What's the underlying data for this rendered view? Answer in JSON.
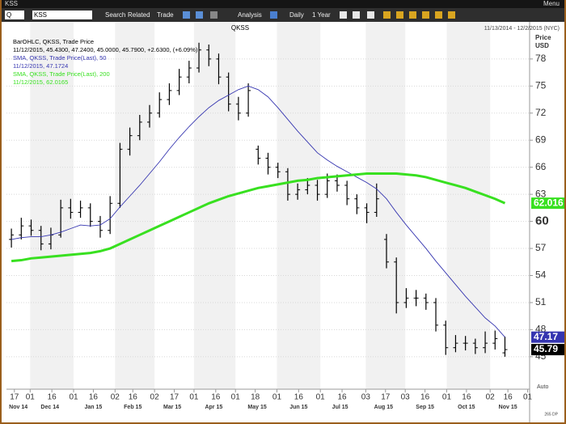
{
  "window": {
    "title": "KSS",
    "menu": "Menu"
  },
  "toolbar": {
    "symbol_prefix": "Q",
    "symbol": "KSS",
    "items": [
      "Search",
      "Related",
      "Trade",
      "Analysis",
      "Daily",
      "1 Year"
    ]
  },
  "chart_data": {
    "type": "ohlc",
    "title": "QKSS",
    "subtitle": "11/13/2014 - 12/2/2015 (NYC)",
    "y_label": "Price",
    "y_unit": "USD",
    "xlim": [
      0,
      265
    ],
    "ylim": [
      41.4,
      80.5
    ],
    "yticks": [
      45,
      48,
      51,
      54,
      57,
      60,
      63,
      66,
      69,
      72,
      75,
      78
    ],
    "emphasized_ytick": 60,
    "grid": true,
    "xticks": [
      {
        "value": 4,
        "label": "17"
      },
      {
        "value": 12,
        "label": "01"
      },
      {
        "value": 23,
        "label": "16"
      },
      {
        "value": 34,
        "label": "01"
      },
      {
        "value": 44,
        "label": "16"
      },
      {
        "value": 55,
        "label": "02"
      },
      {
        "value": 64,
        "label": "16"
      },
      {
        "value": 75,
        "label": "02"
      },
      {
        "value": 85,
        "label": "17"
      },
      {
        "value": 95,
        "label": "01"
      },
      {
        "value": 106,
        "label": "16"
      },
      {
        "value": 116,
        "label": "01"
      },
      {
        "value": 126,
        "label": "18"
      },
      {
        "value": 137,
        "label": "01"
      },
      {
        "value": 148,
        "label": "16"
      },
      {
        "value": 159,
        "label": "01"
      },
      {
        "value": 170,
        "label": "16"
      },
      {
        "value": 182,
        "label": "03"
      },
      {
        "value": 192,
        "label": "17"
      },
      {
        "value": 202,
        "label": "03"
      },
      {
        "value": 212,
        "label": "16"
      },
      {
        "value": 223,
        "label": "01"
      },
      {
        "value": 233,
        "label": "16"
      },
      {
        "value": 245,
        "label": "02"
      },
      {
        "value": 254,
        "label": "16"
      },
      {
        "value": 264,
        "label": "01"
      }
    ],
    "month_ticks": [
      {
        "value": 6,
        "label": "Nov 14"
      },
      {
        "value": 22,
        "label": "Dec 14"
      },
      {
        "value": 44,
        "label": "Jan 15"
      },
      {
        "value": 64,
        "label": "Feb 15"
      },
      {
        "value": 84,
        "label": "Mar 15"
      },
      {
        "value": 105,
        "label": "Apr 15"
      },
      {
        "value": 127,
        "label": "May 15"
      },
      {
        "value": 148,
        "label": "Jun 15"
      },
      {
        "value": 169,
        "label": "Jul 15"
      },
      {
        "value": 191,
        "label": "Aug 15"
      },
      {
        "value": 212,
        "label": "Sep 15"
      },
      {
        "value": 233,
        "label": "Oct 15"
      },
      {
        "value": 254,
        "label": "Nov 15"
      }
    ],
    "x": [
      2.5,
      7.5,
      12.5,
      17.5,
      22.5,
      27.5,
      32.5,
      37.5,
      42.5,
      47.5,
      52.5,
      57.5,
      62.5,
      67.5,
      72.5,
      77.5,
      82.5,
      87.5,
      92.5,
      97.5,
      102.5,
      107.5,
      112.5,
      117.5,
      122.5,
      127.5,
      132.5,
      137.5,
      142.5,
      147.5,
      152.5,
      157.5,
      162.5,
      167.5,
      172.5,
      177.5,
      182.5,
      187.5,
      192.5,
      197.5,
      202.5,
      207.5,
      212.5,
      217.5,
      222.5,
      227.5,
      232.5,
      237.5,
      242.5,
      247.5,
      252.5
    ],
    "series": [
      {
        "name": "BarOHLC, QKSS, Trade Price",
        "info": "11/12/2015, 45.4300, 47.2400, 45.0000, 45.7900, +2.6300, (+6.09%)",
        "color": "#000000",
        "last_label": "45.79",
        "open": [
          58,
          58.5,
          59.5,
          59,
          57.5,
          58.5,
          61.5,
          61,
          61.5,
          60,
          59,
          62,
          68,
          69.5,
          71,
          72,
          73.5,
          74.5,
          76,
          77,
          79,
          78,
          76,
          73,
          72,
          68,
          67,
          66,
          65.5,
          63,
          63.5,
          64,
          63,
          64.5,
          64,
          62.5,
          61.5,
          61,
          58,
          55.5,
          51,
          51.5,
          51.5,
          51,
          48.5,
          46,
          46.5,
          46.5,
          46,
          46.5,
          45.43
        ],
        "high": [
          59.2,
          60.4,
          60.2,
          59.5,
          59.3,
          62.4,
          62.5,
          62.3,
          62,
          60.6,
          62.8,
          68.7,
          70.4,
          71.8,
          72.9,
          74.3,
          75.3,
          76.9,
          77.8,
          79.8,
          79.6,
          78.6,
          76.5,
          73.8,
          75.3,
          68.4,
          67.6,
          66.5,
          65.9,
          64.2,
          64.8,
          64.6,
          65.3,
          65.2,
          64.5,
          63,
          62,
          64.2,
          58.6,
          56,
          52.6,
          52.4,
          52,
          51.5,
          49,
          47.4,
          47.3,
          47,
          47.8,
          47.9,
          47.24
        ],
        "low": [
          57.1,
          58,
          58.4,
          56.8,
          56.9,
          58.2,
          60.3,
          60.4,
          59.4,
          58.2,
          58.6,
          61.5,
          67.3,
          69,
          70.4,
          71.5,
          72.9,
          74,
          75.3,
          76.5,
          77.2,
          75.2,
          72.2,
          71.2,
          71.6,
          66.3,
          65.2,
          64.8,
          62.3,
          62.4,
          63,
          62.3,
          62.6,
          63.3,
          61.8,
          60.8,
          59.8,
          60.5,
          54.8,
          49.8,
          50.4,
          50.6,
          50.2,
          47.8,
          45.2,
          45.5,
          45.7,
          45.3,
          45.4,
          45.8,
          45
        ],
        "close": [
          58.5,
          59.5,
          59,
          57.5,
          58.5,
          61.5,
          61,
          61.5,
          60,
          59,
          62,
          68,
          69.5,
          71,
          72,
          73.5,
          74.5,
          76,
          77,
          79,
          78,
          76,
          73,
          72,
          74.5,
          67,
          66,
          65.5,
          63,
          63.5,
          64,
          63,
          64.5,
          64,
          62.5,
          61.5,
          61,
          62.5,
          55.5,
          51,
          51.5,
          51.5,
          51,
          48.5,
          46,
          46.5,
          46.5,
          46,
          46.5,
          47,
          45.79
        ]
      },
      {
        "name": "SMA, QKSS, Trade Price(Last),  50",
        "info": "11/12/2015, 47.1724",
        "color": "#3535b0",
        "last_label": "47.17",
        "values": [
          58,
          58.2,
          58.3,
          58.3,
          58.5,
          58.8,
          59.2,
          59.6,
          59.5,
          59.6,
          60.3,
          61.6,
          62.8,
          64,
          65.3,
          66.6,
          68,
          69.3,
          70.5,
          71.6,
          72.6,
          73.4,
          74,
          74.6,
          75,
          74.6,
          73.8,
          72.6,
          71.3,
          70,
          68.8,
          67.6,
          66.8,
          66.1,
          65.5,
          64.9,
          64.3,
          63.6,
          62.5,
          61,
          59.6,
          58.3,
          57,
          55.6,
          54.3,
          53,
          51.7,
          50.5,
          49.3,
          48.4,
          47.17
        ]
      },
      {
        "name": "SMA, QKSS, Trade Price(Last),  200",
        "info": "11/12/2015, 62.0165",
        "color": "#38e020",
        "last_label": "62.016",
        "values": [
          55.6,
          55.7,
          55.9,
          56,
          56.1,
          56.2,
          56.3,
          56.4,
          56.5,
          56.7,
          57,
          57.5,
          58,
          58.5,
          59,
          59.5,
          60,
          60.5,
          61,
          61.5,
          62,
          62.4,
          62.8,
          63.1,
          63.4,
          63.7,
          63.9,
          64.1,
          64.3,
          64.5,
          64.6,
          64.8,
          64.9,
          65,
          65.1,
          65.2,
          65.3,
          65.3,
          65.3,
          65.3,
          65.2,
          65.1,
          64.9,
          64.6,
          64.3,
          64,
          63.7,
          63.3,
          62.9,
          62.5,
          62.016
        ]
      }
    ],
    "footer": {
      "auto": "Auto",
      "points": "265 DP"
    }
  }
}
